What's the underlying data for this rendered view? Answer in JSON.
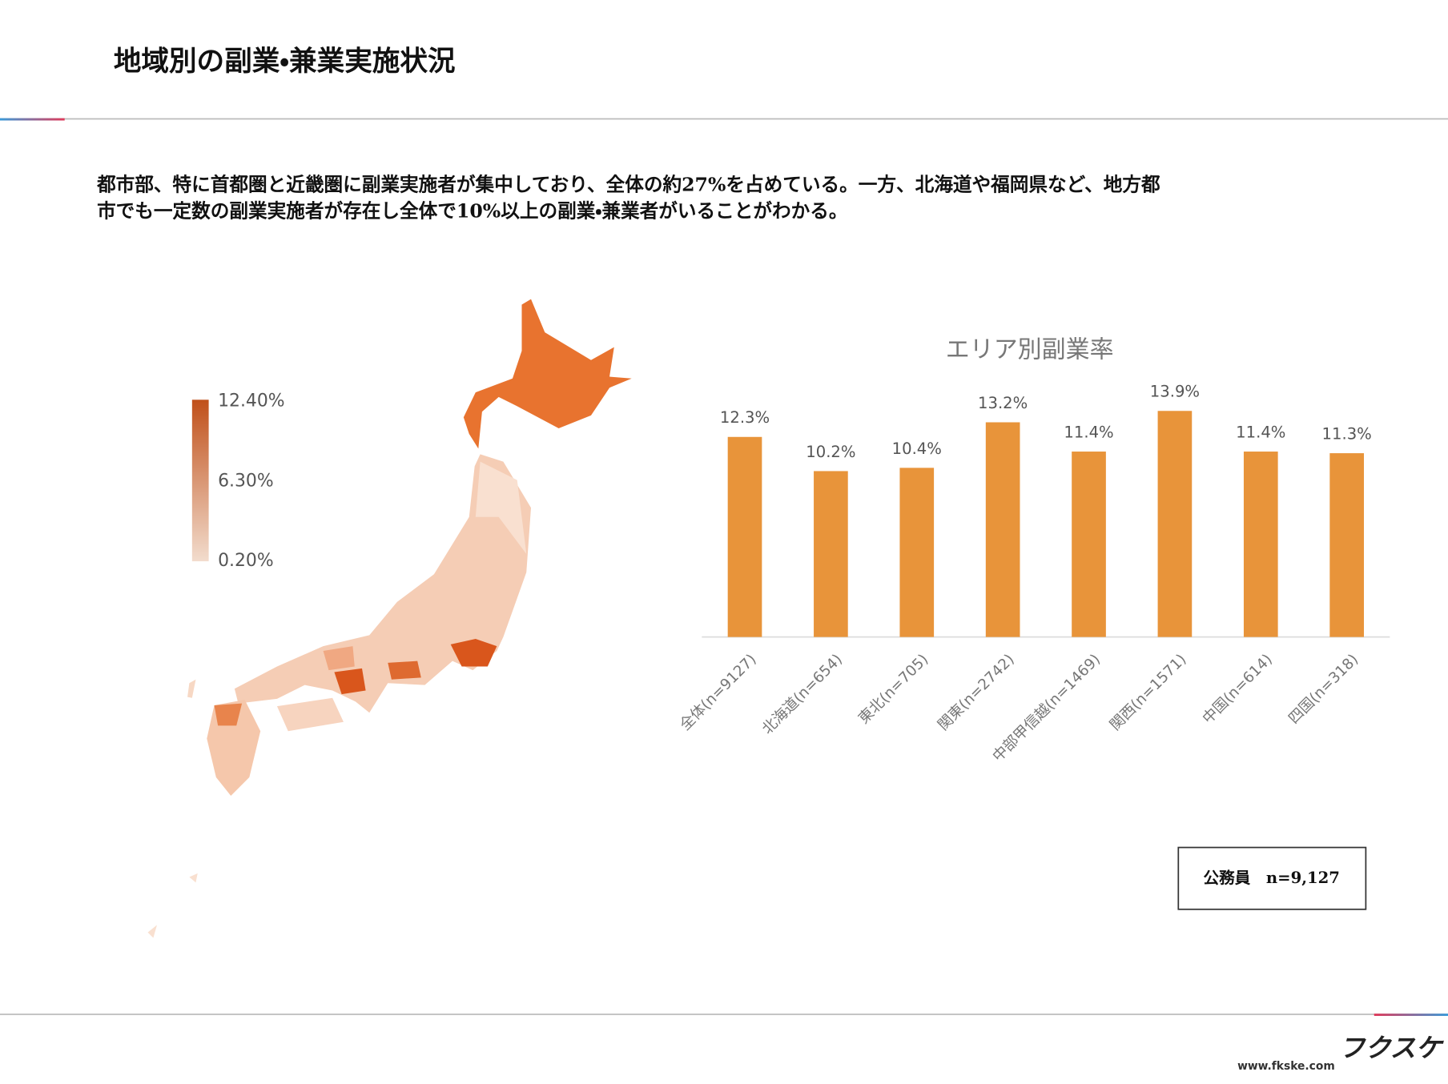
{
  "header": {
    "title": "地域別の副業・兼業実施状況"
  },
  "description": {
    "lines": [
      "都市部、特に首都圏と近畿圏に副業実施者が集中しており、全体の約27%を占めている。一方、北海道や福岡県など、地方都",
      "市でも一定数の副業実施者が存在し全体で10%以上の副業・兼業者がいることがわかる。"
    ]
  },
  "map_legend": {
    "ticks": [
      {
        "value": 12.4,
        "label": "12.40%"
      },
      {
        "value": 6.3,
        "label": "6.30%"
      },
      {
        "value": 0.2,
        "label": "0.20%"
      }
    ],
    "colors": [
      "#c0501a",
      "#f2dccd"
    ]
  },
  "chart_data": {
    "type": "bar",
    "title": "エリア別副業率",
    "categories": [
      "全体(n=9127)",
      "北海道(n=654)",
      "東北(n=705)",
      "関東(n=2742)",
      "中部甲信越(n=1469)",
      "関西(n=1571)",
      "中国(n=614)",
      "四国(n=318)"
    ],
    "values": [
      12.3,
      10.2,
      10.4,
      13.2,
      11.4,
      13.9,
      11.4,
      11.3
    ],
    "value_labels": [
      "12.3%",
      "10.2%",
      "10.4%",
      "13.2%",
      "11.4%",
      "13.9%",
      "11.4%",
      "11.3%"
    ],
    "color": "#e8943a",
    "ylim": [
      0,
      15
    ]
  },
  "note": {
    "text": "公務員　n=9,127"
  },
  "footer": {
    "url": "www.fkske.com",
    "logo": "フクスケ"
  }
}
